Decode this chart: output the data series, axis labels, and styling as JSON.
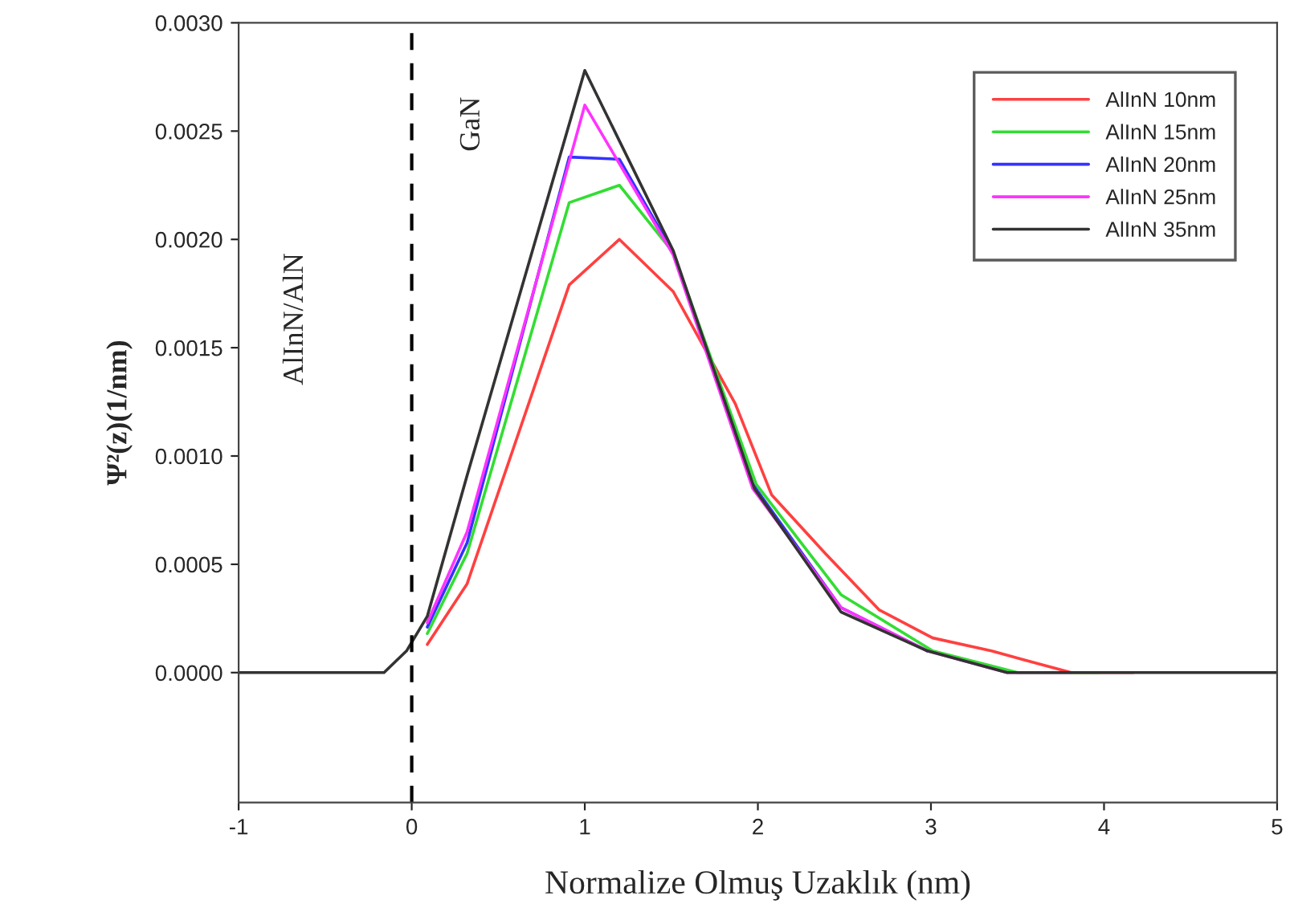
{
  "chart_data": {
    "type": "line",
    "xlabel": "Normalize Olmuş Uzaklık (nm)",
    "ylabel": "Ψ²(z)(1/nm)",
    "xlim": [
      -1,
      5
    ],
    "xticks": [
      -1,
      0,
      1,
      2,
      3,
      4,
      5
    ],
    "ylim": [
      -0.0006,
      0.003
    ],
    "yticks": [
      {
        "value": 0,
        "label": "0.0000"
      },
      {
        "value": 0.0005,
        "label": "0.0005"
      },
      {
        "value": 0.001,
        "label": "0.0010"
      },
      {
        "value": 0.0015,
        "label": "0.0015"
      },
      {
        "value": 0.002,
        "label": "0.0020"
      },
      {
        "value": 0.0025,
        "label": "0.0025"
      },
      {
        "value": 0.003,
        "label": "0.0030"
      }
    ],
    "legend": "top right",
    "grid": false,
    "line_style": "solid",
    "marker": "none",
    "ref_lines": [
      {
        "axis": "x",
        "value": 0,
        "color": "#000000",
        "line_style": "dashed"
      }
    ],
    "annotations": [
      "AlInN/AlN",
      "GaN"
    ],
    "series": [
      {
        "name": "AlInN 10nm",
        "color": "#ff4040",
        "x": [
          0.09,
          0.32,
          0.91,
          1.2,
          1.51,
          1.87,
          2.08,
          2.39,
          2.7,
          3.01,
          3.35,
          3.81,
          4.17
        ],
        "values": [
          0.00013,
          0.00041,
          0.00179,
          0.002,
          0.00176,
          0.00124,
          0.00082,
          0.00055,
          0.00029,
          0.00016,
          0.0001,
          0,
          0
        ]
      },
      {
        "name": "AlInN 15nm",
        "color": "#33dd33",
        "x": [
          0.09,
          0.32,
          0.91,
          1.2,
          1.51,
          1.99,
          2.48,
          3.01,
          3.5,
          3.97
        ],
        "values": [
          0.00018,
          0.00055,
          0.00217,
          0.00225,
          0.00194,
          0.00087,
          0.00036,
          0.0001,
          0,
          0
        ]
      },
      {
        "name": "AlInN 20nm",
        "color": "#3333ff",
        "x": [
          0.09,
          0.32,
          0.91,
          1.2,
          1.51,
          1.97,
          2.48,
          2.98
        ],
        "values": [
          0.00021,
          0.0006,
          0.00238,
          0.00237,
          0.00194,
          0.00087,
          0.0003,
          0.0001
        ]
      },
      {
        "name": "AlInN 25nm",
        "color": "#ff33ff",
        "x": [
          0.09,
          0.32,
          1.0,
          1.51,
          1.97,
          2.48,
          2.98,
          3.44,
          3.81
        ],
        "values": [
          0.00023,
          0.00065,
          0.00262,
          0.00193,
          0.00085,
          0.0003,
          0.0001,
          0,
          0
        ]
      },
      {
        "name": "AlInN 35nm",
        "color": "#333333",
        "x": [
          -1,
          -0.16,
          -0.03,
          0,
          0.09,
          0.32,
          1.0,
          1.51,
          1.98,
          2.48,
          2.98,
          3.44,
          3.81,
          5
        ],
        "values": [
          0,
          0,
          0.0001,
          null,
          0.00026,
          0.00091,
          0.00278,
          0.00195,
          0.00085,
          0.00028,
          0.0001,
          0,
          0,
          0
        ]
      }
    ]
  }
}
